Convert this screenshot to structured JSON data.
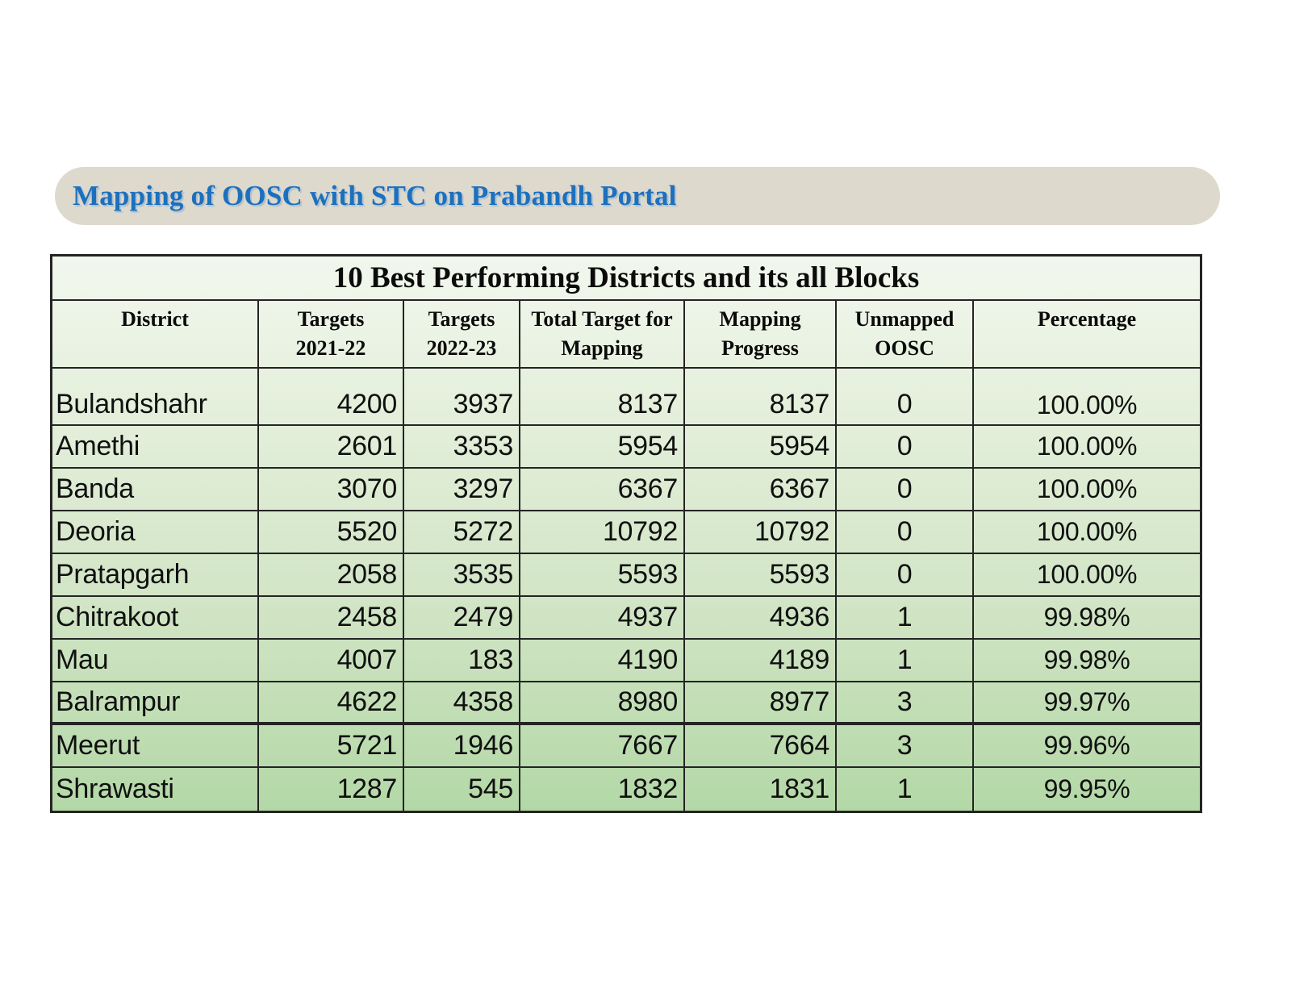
{
  "banner": {
    "title": "Mapping of OOSC with STC on Prabandh Portal"
  },
  "table": {
    "title": "10 Best Performing Districts and its all Blocks",
    "columns": [
      {
        "line1": "District",
        "line2": ""
      },
      {
        "line1": "Targets",
        "line2": "2021-22"
      },
      {
        "line1": "Targets",
        "line2": "2022-23"
      },
      {
        "line1": "Total Target for",
        "line2": "Mapping"
      },
      {
        "line1": "Mapping",
        "line2": "Progress"
      },
      {
        "line1": "Unmapped",
        "line2": "OOSC"
      },
      {
        "line1": "Percentage",
        "line2": ""
      }
    ],
    "rows": [
      {
        "district": "Bulandshahr",
        "targets_2021_22": "4200",
        "targets_2022_23": "3937",
        "total_target": "8137",
        "mapping_progress": "8137",
        "unmapped_oosc": "0",
        "percentage": "100.00%"
      },
      {
        "district": "Amethi",
        "targets_2021_22": "2601",
        "targets_2022_23": "3353",
        "total_target": "5954",
        "mapping_progress": "5954",
        "unmapped_oosc": "0",
        "percentage": "100.00%"
      },
      {
        "district": "Banda",
        "targets_2021_22": "3070",
        "targets_2022_23": "3297",
        "total_target": "6367",
        "mapping_progress": "6367",
        "unmapped_oosc": "0",
        "percentage": "100.00%"
      },
      {
        "district": "Deoria",
        "targets_2021_22": "5520",
        "targets_2022_23": "5272",
        "total_target": "10792",
        "mapping_progress": "10792",
        "unmapped_oosc": "0",
        "percentage": "100.00%"
      },
      {
        "district": "Pratapgarh",
        "targets_2021_22": "2058",
        "targets_2022_23": "3535",
        "total_target": "5593",
        "mapping_progress": "5593",
        "unmapped_oosc": "0",
        "percentage": "100.00%"
      },
      {
        "district": "Chitrakoot",
        "targets_2021_22": "2458",
        "targets_2022_23": "2479",
        "total_target": "4937",
        "mapping_progress": "4936",
        "unmapped_oosc": "1",
        "percentage": "99.98%"
      },
      {
        "district": "Mau",
        "targets_2021_22": "4007",
        "targets_2022_23": "183",
        "total_target": "4190",
        "mapping_progress": "4189",
        "unmapped_oosc": "1",
        "percentage": "99.98%"
      },
      {
        "district": "Balrampur",
        "targets_2021_22": "4622",
        "targets_2022_23": "4358",
        "total_target": "8980",
        "mapping_progress": "8977",
        "unmapped_oosc": "3",
        "percentage": "99.97%"
      },
      {
        "district": "Meerut",
        "targets_2021_22": "5721",
        "targets_2022_23": "1946",
        "total_target": "7667",
        "mapping_progress": "7664",
        "unmapped_oosc": "3",
        "percentage": "99.96%"
      },
      {
        "district": "Shrawasti",
        "targets_2021_22": "1287",
        "targets_2022_23": "545",
        "total_target": "1832",
        "mapping_progress": "1831",
        "unmapped_oosc": "1",
        "percentage": "99.95%"
      }
    ]
  },
  "colors": {
    "banner_bg": "#ded9cd",
    "title_blue": "#1c70bd",
    "table_border": "#242424",
    "table_gradient_top": "#f2f7ee",
    "table_gradient_bottom": "#b3d8a6"
  }
}
